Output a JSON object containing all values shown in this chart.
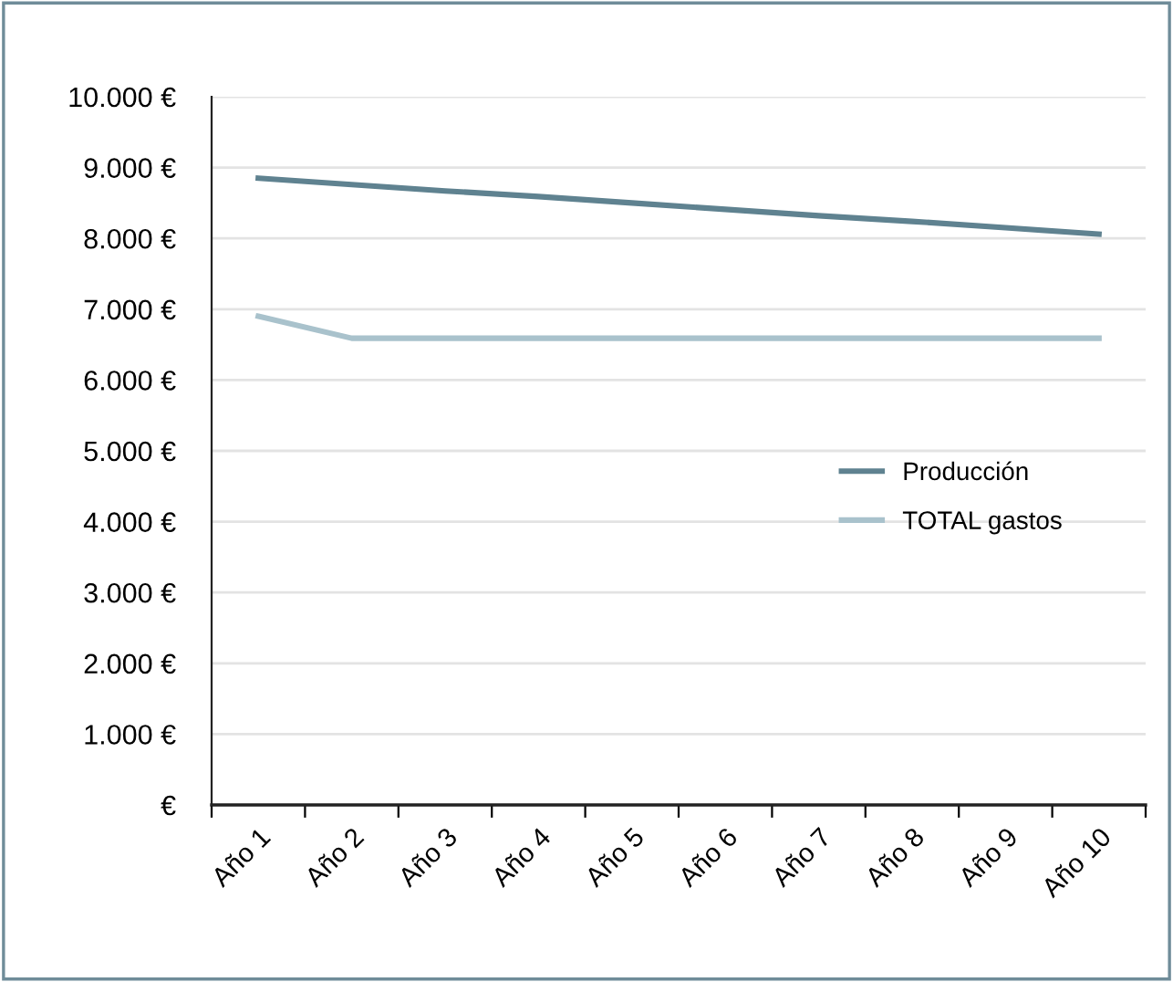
{
  "chart_data": {
    "type": "line",
    "categories": [
      "Año 1",
      "Año 2",
      "Año 3",
      "Año 4",
      "Año 5",
      "Año 6",
      "Año 7",
      "Año 8",
      "Año 9",
      "Año 10"
    ],
    "series": [
      {
        "name": "Producción",
        "color": "#5f8290",
        "values": [
          8850,
          8760,
          8670,
          8590,
          8500,
          8410,
          8320,
          8240,
          8150,
          8060
        ]
      },
      {
        "name": "TOTAL gastos",
        "color": "#a9c2cc",
        "values": [
          6900,
          6590,
          6590,
          6590,
          6590,
          6590,
          6590,
          6590,
          6590,
          6590
        ]
      }
    ],
    "ylim": [
      0,
      10000
    ],
    "yticks": [
      {
        "value": 0,
        "label": "€"
      },
      {
        "value": 1000,
        "label": "1.000 €"
      },
      {
        "value": 2000,
        "label": "2.000 €"
      },
      {
        "value": 3000,
        "label": "3.000 €"
      },
      {
        "value": 4000,
        "label": "4.000 €"
      },
      {
        "value": 5000,
        "label": "5.000 €"
      },
      {
        "value": 6000,
        "label": "6.000 €"
      },
      {
        "value": 7000,
        "label": "7.000 €"
      },
      {
        "value": 8000,
        "label": "8.000 €"
      },
      {
        "value": 9000,
        "label": "9.000 €"
      },
      {
        "value": 10000,
        "label": "10.000 €"
      }
    ],
    "grid": "y",
    "legend": "right",
    "marker": "none",
    "line_style": "solid"
  }
}
